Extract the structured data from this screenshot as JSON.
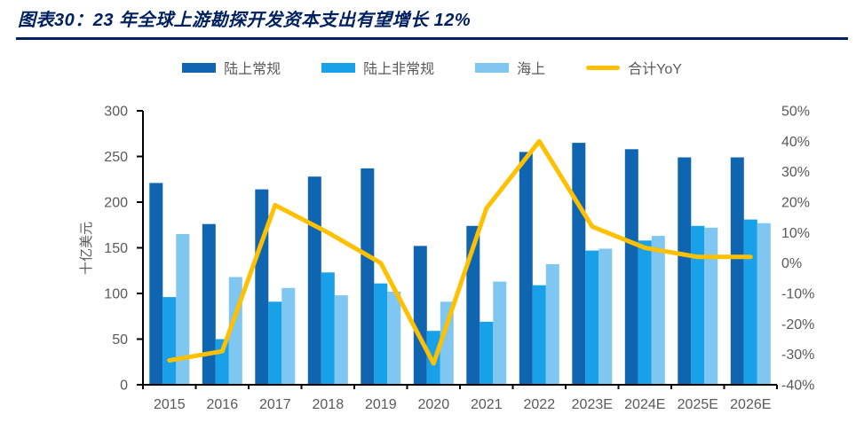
{
  "page": {
    "title": "图表30：23 年全球上游勘探开发资本支出有望增长 12%"
  },
  "colors": {
    "title_navy": "#002060",
    "axis_text": "#595959",
    "axis_line": "#000000",
    "onshore_conventional": "#1065B1",
    "onshore_unconventional": "#18A0E8",
    "offshore": "#7FC6F0",
    "yoy_line": "#FFC000"
  },
  "chart_data": {
    "type": "bar",
    "subtype": "clustered bars with line overlay on secondary axis",
    "categories": [
      "2015",
      "2016",
      "2017",
      "2018",
      "2019",
      "2020",
      "2021",
      "2022",
      "2023E",
      "2024E",
      "2025E",
      "2026E"
    ],
    "series": [
      {
        "name": "陆上常规",
        "type": "bar",
        "axis": "left",
        "color": "#1065B1",
        "values": [
          221,
          176,
          214,
          228,
          237,
          152,
          174,
          255,
          265,
          258,
          249,
          249
        ]
      },
      {
        "name": "陆上非常规",
        "type": "bar",
        "axis": "left",
        "color": "#18A0E8",
        "values": [
          96,
          50,
          91,
          123,
          111,
          59,
          69,
          109,
          147,
          158,
          174,
          181
        ]
      },
      {
        "name": "海上",
        "type": "bar",
        "axis": "left",
        "color": "#7FC6F0",
        "values": [
          165,
          118,
          106,
          98,
          102,
          91,
          113,
          132,
          149,
          163,
          172,
          177
        ]
      },
      {
        "name": "合计YoY",
        "type": "line",
        "axis": "right",
        "color": "#FFC000",
        "values": [
          -32,
          -29,
          19,
          10,
          0,
          -33,
          18,
          40,
          12,
          5,
          2,
          2
        ]
      }
    ],
    "y_left": {
      "label": "十亿美元",
      "min": 0,
      "max": 300,
      "ticks": [
        0,
        50,
        100,
        150,
        200,
        250,
        300
      ]
    },
    "y_right": {
      "label": "",
      "min": -40,
      "max": 50,
      "unit": "%",
      "ticks": [
        50,
        40,
        30,
        20,
        10,
        0,
        -10,
        -20,
        -30,
        -40
      ]
    },
    "legend_position": "top",
    "grid": false
  }
}
